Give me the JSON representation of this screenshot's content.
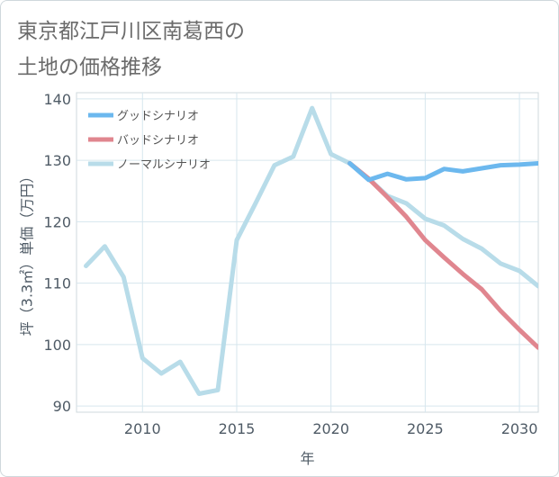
{
  "title_lines": [
    "東京都江戸川区南葛西の",
    "土地の価格推移"
  ],
  "chart_data": {
    "type": "line",
    "xlabel": "年",
    "ylabel": "坪（3.3㎡）単価（万円）",
    "xlim": [
      2006.5,
      2031
    ],
    "ylim": [
      89,
      141
    ],
    "x_ticks": [
      2010,
      2015,
      2020,
      2025,
      2030
    ],
    "y_ticks": [
      90,
      100,
      110,
      120,
      130,
      140
    ],
    "grid": true,
    "legend_position": "top-left",
    "series": [
      {
        "name": "グッドシナリオ",
        "color": "#6cb8ee",
        "x": [
          2021,
          2022,
          2023,
          2024,
          2025,
          2026,
          2027,
          2028,
          2029,
          2030,
          2031
        ],
        "y": [
          129.5,
          126.8,
          127.8,
          126.9,
          127.1,
          128.6,
          128.2,
          128.7,
          129.2,
          129.3,
          129.5
        ]
      },
      {
        "name": "バッドシナリオ",
        "color": "#e0868f",
        "x": [
          2021,
          2022,
          2023,
          2024,
          2025,
          2026,
          2027,
          2028,
          2029,
          2030,
          2031
        ],
        "y": [
          129.5,
          127.0,
          124.0,
          120.8,
          117.0,
          114.2,
          111.5,
          109.0,
          105.5,
          102.4,
          99.5
        ]
      },
      {
        "name": "ノーマルシナリオ",
        "color": "#b8dce9",
        "x": [
          2007,
          2008,
          2009,
          2010,
          2011,
          2012,
          2013,
          2014,
          2015,
          2016,
          2017,
          2018,
          2019,
          2020,
          2021,
          2022,
          2023,
          2024,
          2025,
          2026,
          2027,
          2028,
          2029,
          2030,
          2031
        ],
        "y": [
          112.8,
          116.0,
          111.0,
          97.8,
          95.3,
          97.2,
          92.0,
          92.6,
          117.0,
          123.0,
          129.2,
          130.6,
          138.5,
          131.0,
          129.5,
          127.0,
          124.2,
          123.0,
          120.5,
          119.4,
          117.2,
          115.6,
          113.2,
          112.0,
          109.5
        ]
      }
    ]
  }
}
